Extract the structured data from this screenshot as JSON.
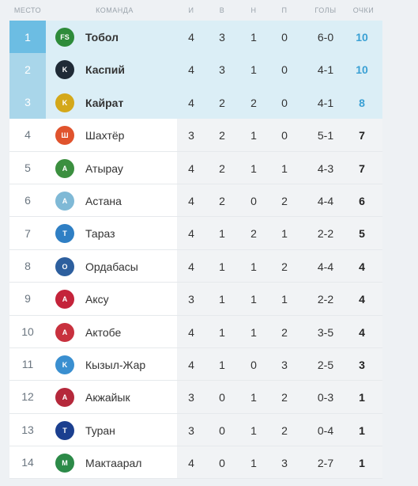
{
  "headers": {
    "place": "МЕСТО",
    "team": "КОМАНДА",
    "games": "И",
    "wins": "В",
    "draws": "Н",
    "losses": "П",
    "goals": "ГОЛЫ",
    "points": "ОЧКИ"
  },
  "rows": [
    {
      "place": "1",
      "team": "Тобол",
      "i": "4",
      "v": "3",
      "n": "1",
      "p": "0",
      "goals": "6-0",
      "points": "10",
      "logo_color": "#2e8b3a",
      "logo_text": "FS"
    },
    {
      "place": "2",
      "team": "Каспий",
      "i": "4",
      "v": "3",
      "n": "1",
      "p": "0",
      "goals": "4-1",
      "points": "10",
      "logo_color": "#1f2a36",
      "logo_text": "K"
    },
    {
      "place": "3",
      "team": "Кайрат",
      "i": "4",
      "v": "2",
      "n": "2",
      "p": "0",
      "goals": "4-1",
      "points": "8",
      "logo_color": "#d4a81a",
      "logo_text": "K"
    },
    {
      "place": "4",
      "team": "Шахтёр",
      "i": "3",
      "v": "2",
      "n": "1",
      "p": "0",
      "goals": "5-1",
      "points": "7",
      "logo_color": "#e0532d",
      "logo_text": "Ш"
    },
    {
      "place": "5",
      "team": "Атырау",
      "i": "4",
      "v": "2",
      "n": "1",
      "p": "1",
      "goals": "4-3",
      "points": "7",
      "logo_color": "#3b8f3f",
      "logo_text": "A"
    },
    {
      "place": "6",
      "team": "Астана",
      "i": "4",
      "v": "2",
      "n": "0",
      "p": "2",
      "goals": "4-4",
      "points": "6",
      "logo_color": "#7fb9d6",
      "logo_text": "A"
    },
    {
      "place": "7",
      "team": "Тараз",
      "i": "4",
      "v": "1",
      "n": "2",
      "p": "1",
      "goals": "2-2",
      "points": "5",
      "logo_color": "#2f7fc4",
      "logo_text": "T"
    },
    {
      "place": "8",
      "team": "Ордабасы",
      "i": "4",
      "v": "1",
      "n": "1",
      "p": "2",
      "goals": "4-4",
      "points": "4",
      "logo_color": "#2d5f9e",
      "logo_text": "O"
    },
    {
      "place": "9",
      "team": "Аксу",
      "i": "3",
      "v": "1",
      "n": "1",
      "p": "1",
      "goals": "2-2",
      "points": "4",
      "logo_color": "#c4233a",
      "logo_text": "A"
    },
    {
      "place": "10",
      "team": "Актобе",
      "i": "4",
      "v": "1",
      "n": "1",
      "p": "2",
      "goals": "3-5",
      "points": "4",
      "logo_color": "#c8313e",
      "logo_text": "A"
    },
    {
      "place": "11",
      "team": "Кызыл-Жар",
      "i": "4",
      "v": "1",
      "n": "0",
      "p": "3",
      "goals": "2-5",
      "points": "3",
      "logo_color": "#3a8fd0",
      "logo_text": "K"
    },
    {
      "place": "12",
      "team": "Акжайык",
      "i": "3",
      "v": "0",
      "n": "1",
      "p": "2",
      "goals": "0-3",
      "points": "1",
      "logo_color": "#b5283b",
      "logo_text": "A"
    },
    {
      "place": "13",
      "team": "Туран",
      "i": "3",
      "v": "0",
      "n": "1",
      "p": "2",
      "goals": "0-4",
      "points": "1",
      "logo_color": "#1b3f8f",
      "logo_text": "T"
    },
    {
      "place": "14",
      "team": "Мактаарал",
      "i": "4",
      "v": "0",
      "n": "1",
      "p": "3",
      "goals": "2-7",
      "points": "1",
      "logo_color": "#2c8a48",
      "logo_text": "M"
    }
  ]
}
